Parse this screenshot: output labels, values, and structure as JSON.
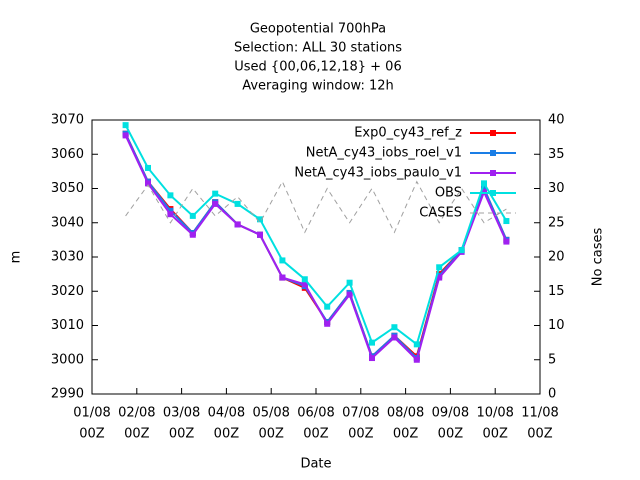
{
  "chart_data": {
    "type": "line",
    "title": [
      "Geopotential 700hPa",
      "Selection: ALL     30 stations",
      "Used {00,06,12,18} + 06",
      "Averaging window: 12h"
    ],
    "xlabel": "Date",
    "ylabel": "m",
    "y2label": "No cases",
    "x": [
      18,
      30,
      42,
      54,
      66,
      78,
      90,
      102,
      114,
      126,
      138,
      150,
      162,
      174,
      186,
      198,
      210,
      222
    ],
    "xlim": [
      0,
      240
    ],
    "xticks": [
      {
        "value": 0,
        "label": [
          "01/08",
          "00Z"
        ]
      },
      {
        "value": 24,
        "label": [
          "02/08",
          "00Z"
        ]
      },
      {
        "value": 48,
        "label": [
          "03/08",
          "00Z"
        ]
      },
      {
        "value": 72,
        "label": [
          "04/08",
          "00Z"
        ]
      },
      {
        "value": 96,
        "label": [
          "05/08",
          "00Z"
        ]
      },
      {
        "value": 120,
        "label": [
          "06/08",
          "00Z"
        ]
      },
      {
        "value": 144,
        "label": [
          "07/08",
          "00Z"
        ]
      },
      {
        "value": 168,
        "label": [
          "08/08",
          "00Z"
        ]
      },
      {
        "value": 192,
        "label": [
          "09/08",
          "00Z"
        ]
      },
      {
        "value": 216,
        "label": [
          "10/08",
          "00Z"
        ]
      },
      {
        "value": 240,
        "label": [
          "11/08",
          "00Z"
        ]
      }
    ],
    "ylim": [
      2990,
      3070
    ],
    "yticks": [
      2990,
      3000,
      3010,
      3020,
      3030,
      3040,
      3050,
      3060,
      3070
    ],
    "y2lim": [
      0,
      40
    ],
    "y2ticks": [
      0,
      5,
      10,
      15,
      20,
      25,
      30,
      35,
      40
    ],
    "legend": "upper right",
    "series": [
      {
        "name": "Exp0_cy43_ref_z",
        "color": "#ff0000",
        "values": [
          3066,
          3052,
          3044,
          3037,
          3046,
          3039.5,
          3036.5,
          3024,
          3021,
          3011,
          3019.5,
          3001,
          3007,
          3001,
          3025,
          3032,
          3050,
          3035
        ]
      },
      {
        "name": "NetA_cy43_iobs_roel_v1",
        "color": "#1a7ee6",
        "values": [
          3066,
          3052,
          3043.5,
          3037,
          3046,
          3039.5,
          3036.5,
          3024,
          3021.5,
          3011,
          3019.5,
          3001,
          3007,
          3000.5,
          3024.5,
          3032,
          3050,
          3035
        ]
      },
      {
        "name": "NetA_cy43_iobs_paulo_v1",
        "color": "#a020f0",
        "values": [
          3065.5,
          3051.5,
          3042.5,
          3036.5,
          3045.5,
          3039.5,
          3036.5,
          3024,
          3022,
          3010.5,
          3019,
          3000.5,
          3006.5,
          3000,
          3024,
          3031.5,
          3049,
          3034.5
        ]
      },
      {
        "name": "OBS",
        "color": "#00e0e0",
        "values": [
          3068.5,
          3056,
          3048,
          3042,
          3048.5,
          3045.5,
          3041,
          3029,
          3023.5,
          3015.5,
          3022.5,
          3005,
          3009.5,
          3004.5,
          3027,
          3032,
          3051.5,
          3040.5
        ]
      },
      {
        "name": "CASES",
        "color": "#a0a0a0",
        "axis": "y2",
        "dashed": true,
        "values": [
          26,
          30.5,
          25,
          30,
          26,
          28.8,
          25,
          31,
          23.6,
          30,
          25,
          30,
          23.6,
          31,
          25,
          30,
          25,
          27
        ]
      }
    ]
  }
}
